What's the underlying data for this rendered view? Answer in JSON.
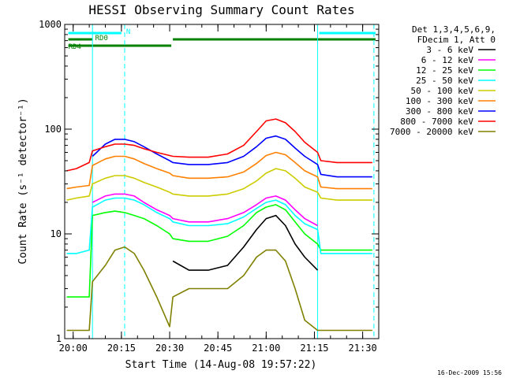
{
  "chart_data": {
    "type": "line",
    "title": "HESSI Observing Summary Count Rates",
    "xlabel": "Start Time (14-Aug-08 19:57:22)",
    "ylabel": "Count Rate (s⁻¹ detector⁻¹)",
    "y_scale": "log",
    "xlim": [
      "19:57:22",
      "21:35:00"
    ],
    "ylim": [
      1,
      1000
    ],
    "x_ticks": [
      "20:00",
      "20:15",
      "20:30",
      "20:45",
      "21:00",
      "21:15",
      "21:30"
    ],
    "y_ticks": [
      "1",
      "10",
      "100",
      "1000"
    ],
    "grid": false,
    "legend_position": "right",
    "legend_header": [
      "Det 1,3,4,5,6,9,",
      "FDecim 1, Att 0"
    ],
    "footer_timestamp": "16-Dec-2009 15:56",
    "flag_bars": [
      {
        "label": "N",
        "color": "#00ffff",
        "segments": [
          [
            "19:58:30",
            "20:15:00"
          ],
          [
            "21:16:30",
            "21:34:00"
          ]
        ]
      },
      {
        "label": "RD0",
        "color": "#008000",
        "segments": [
          [
            "19:58:30",
            "20:06:00"
          ],
          [
            "20:31:00",
            "21:34:00"
          ]
        ]
      },
      {
        "label": "RD4",
        "color": "#008000",
        "segments": [
          [
            "19:58:30",
            "20:30:30"
          ]
        ]
      }
    ],
    "vertical_lines": [
      {
        "time": "20:06:00",
        "style": "solid",
        "color": "#00ffff"
      },
      {
        "time": "20:16:00",
        "style": "dashed",
        "color": "#00ffff"
      },
      {
        "time": "21:16:00",
        "style": "solid",
        "color": "#00ffff"
      },
      {
        "time": "21:33:30",
        "style": "dashed",
        "color": "#00ffff"
      }
    ],
    "x": [
      "19:58",
      "20:01",
      "20:05",
      "20:06",
      "20:10",
      "20:13",
      "20:16",
      "20:19",
      "20:22",
      "20:26",
      "20:30",
      "20:31",
      "20:36",
      "20:42",
      "20:48",
      "20:53",
      "20:57",
      "21:00",
      "21:03",
      "21:06",
      "21:09",
      "21:12",
      "21:16",
      "21:17",
      "21:22",
      "21:27",
      "21:33"
    ],
    "series": [
      {
        "name": "3 - 6 keV",
        "color": "#000000",
        "values": [
          null,
          null,
          null,
          null,
          null,
          null,
          null,
          null,
          null,
          null,
          null,
          5.5,
          4.5,
          4.5,
          5.0,
          7.5,
          11,
          14,
          15,
          12,
          8,
          6,
          4.5,
          null,
          null,
          null,
          null
        ]
      },
      {
        "name": "6 - 12 keV",
        "color": "#ff00ff",
        "values": [
          null,
          null,
          null,
          20,
          23,
          24,
          24,
          23,
          20,
          17,
          15,
          14,
          13,
          13,
          14,
          16,
          19,
          22,
          23,
          21,
          17,
          14,
          12,
          null,
          null,
          null,
          null
        ]
      },
      {
        "name": "12 - 25 keV",
        "color": "#00ff00",
        "values": [
          2.5,
          2.5,
          2.5,
          15,
          16,
          16.5,
          16,
          15,
          14,
          12,
          10,
          9,
          8.5,
          8.5,
          9.5,
          12,
          16,
          18,
          19,
          17,
          13,
          10,
          8,
          7,
          7,
          7,
          7
        ]
      },
      {
        "name": "25 - 50 keV",
        "color": "#00ffff",
        "values": [
          6.5,
          6.5,
          7,
          18,
          21,
          22,
          22,
          21,
          19,
          16,
          14,
          13,
          12,
          12,
          12.5,
          14.5,
          17.5,
          20,
          21,
          19,
          15,
          12.5,
          11,
          6.5,
          6.5,
          6.5,
          6.5
        ]
      },
      {
        "name": "50 - 100 keV",
        "color": "#cccc00",
        "values": [
          21,
          22,
          23,
          30,
          34,
          36,
          36,
          34,
          31,
          28,
          25,
          24,
          23,
          23,
          24,
          27,
          32,
          38,
          42,
          40,
          34,
          28,
          25,
          22,
          21,
          21,
          21
        ]
      },
      {
        "name": "100 - 300 keV",
        "color": "#ff8000",
        "values": [
          27,
          28,
          29,
          45,
          52,
          55,
          55,
          52,
          47,
          42,
          38,
          36,
          34,
          34,
          35,
          39,
          47,
          56,
          60,
          57,
          48,
          40,
          35,
          28,
          27,
          27,
          27
        ]
      },
      {
        "name": "300 - 800 keV",
        "color": "#0000ff",
        "values": [
          null,
          null,
          null,
          55,
          72,
          80,
          80,
          76,
          68,
          58,
          50,
          48,
          46,
          46,
          48,
          55,
          68,
          82,
          86,
          80,
          66,
          55,
          46,
          37,
          35,
          35,
          35
        ]
      },
      {
        "name": "800 - 7000 keV",
        "color": "#ff0000",
        "values": [
          40,
          42,
          48,
          62,
          68,
          72,
          72,
          70,
          65,
          60,
          56,
          55,
          54,
          54,
          58,
          70,
          95,
          120,
          125,
          115,
          95,
          75,
          60,
          50,
          48,
          48,
          48
        ]
      },
      {
        "name": "7000 - 20000 keV",
        "color": "#808000",
        "values": [
          1.2,
          1.2,
          1.2,
          3.5,
          5,
          7,
          7.5,
          6.5,
          4.5,
          2.5,
          1.3,
          2.5,
          3,
          3,
          3,
          4,
          6,
          7,
          7,
          5.5,
          3,
          1.5,
          1.2,
          1.2,
          1.2,
          1.2,
          1.2
        ]
      }
    ]
  }
}
